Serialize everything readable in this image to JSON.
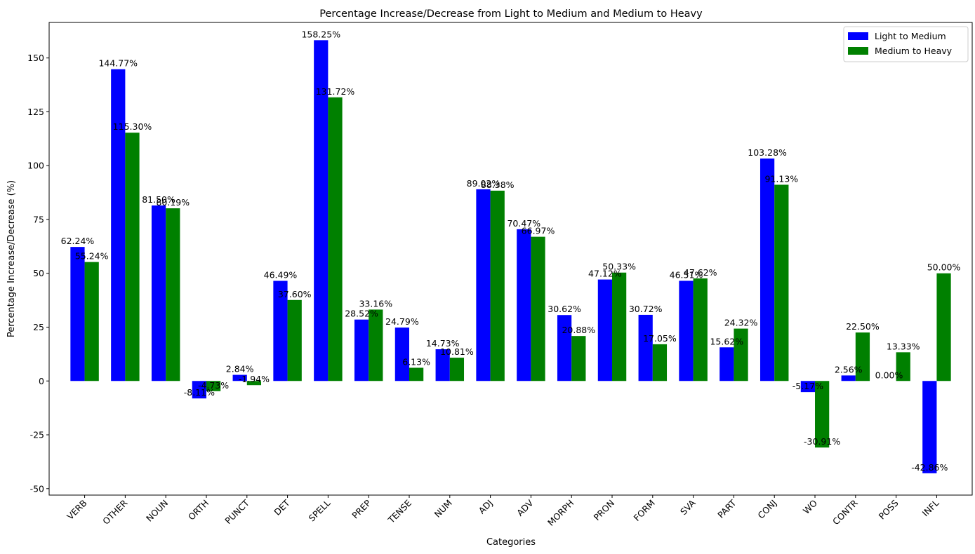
{
  "chart_data": {
    "type": "bar",
    "title": "Percentage Increase/Decrease from Light to Medium and Medium to Heavy",
    "xlabel": "Categories",
    "ylabel": "Percentage Increase/Decrease (%)",
    "ylim": [
      -53.0,
      166.5
    ],
    "yticks": [
      -50,
      -25,
      0,
      25,
      50,
      75,
      100,
      125,
      150
    ],
    "grid": false,
    "legend_position": "top-right",
    "categories": [
      "VERB",
      "OTHER",
      "NOUN",
      "ORTH",
      "PUNCT",
      "DET",
      "SPELL",
      "PREP",
      "TENSE",
      "NUM",
      "ADJ",
      "ADV",
      "MORPH",
      "PRON",
      "FORM",
      "SVA",
      "PART",
      "CONJ",
      "WO",
      "CONTR",
      "POSS",
      "INFL"
    ],
    "series": [
      {
        "name": "Light to Medium",
        "color": "#0000ff",
        "values": [
          62.24,
          144.77,
          81.5,
          -8.11,
          2.84,
          46.49,
          158.25,
          28.52,
          24.79,
          14.73,
          89.02,
          70.47,
          30.62,
          47.12,
          30.72,
          46.51,
          15.62,
          103.28,
          -5.17,
          2.56,
          0.0,
          -42.86
        ],
        "labels": [
          "62.24%",
          "144.77%",
          "81.50%",
          "-8.11%",
          "2.84%",
          "46.49%",
          "158.25%",
          "28.52%",
          "24.79%",
          "14.73%",
          "89.02%",
          "70.47%",
          "30.62%",
          "47.12%",
          "30.72%",
          "46.51%",
          "15.62%",
          "103.28%",
          "-5.17%",
          "2.56%",
          "0.00%",
          "-42.86%"
        ]
      },
      {
        "name": "Medium to Heavy",
        "color": "#008000",
        "values": [
          55.24,
          115.3,
          80.19,
          -4.73,
          -1.94,
          37.6,
          131.72,
          33.16,
          6.13,
          10.81,
          88.38,
          66.97,
          20.88,
          50.33,
          17.05,
          47.62,
          24.32,
          91.13,
          -30.91,
          22.5,
          13.33,
          50.0
        ],
        "labels": [
          "55.24%",
          "115.30%",
          "80.19%",
          "-4.73%",
          "-1.94%",
          "37.60%",
          "131.72%",
          "33.16%",
          "6.13%",
          "10.81%",
          "88.38%",
          "66.97%",
          "20.88%",
          "50.33%",
          "17.05%",
          "47.62%",
          "24.32%",
          "91.13%",
          "-30.91%",
          "22.50%",
          "13.33%",
          "50.00%"
        ]
      }
    ]
  }
}
